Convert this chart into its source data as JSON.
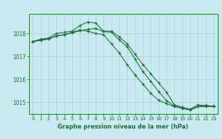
{
  "xlabel": "Graphe pression niveau de la mer (hPa)",
  "background_color": "#c8eaf0",
  "grid_color": "#aad4d0",
  "line_color": "#1a6e2e",
  "ylim": [
    1014.5,
    1018.85
  ],
  "xlim": [
    -0.5,
    23.5
  ],
  "yticks": [
    1015,
    1016,
    1017,
    1018
  ],
  "xticks": [
    0,
    1,
    2,
    3,
    4,
    5,
    6,
    7,
    8,
    9,
    10,
    11,
    12,
    13,
    14,
    15,
    16,
    17,
    18,
    19,
    20,
    21,
    22,
    23
  ],
  "line1": [
    1017.65,
    1017.75,
    1017.8,
    1018.0,
    1018.05,
    1018.1,
    1018.35,
    1018.5,
    1018.45,
    1018.1,
    1018.1,
    1017.85,
    1017.55,
    1017.1,
    1016.65,
    1016.25,
    1015.85,
    1015.45,
    1014.9,
    1014.8,
    1014.7,
    1014.9,
    1014.85,
    1014.85
  ],
  "line2": [
    1017.65,
    1017.7,
    1017.75,
    1017.9,
    1017.95,
    1018.05,
    1018.15,
    1018.1,
    1018.0,
    1017.95,
    1017.55,
    1017.15,
    1016.65,
    1016.2,
    1015.8,
    1015.4,
    1015.1,
    1014.95,
    1014.82,
    1014.75,
    1014.68,
    1014.82,
    1014.88,
    1014.82
  ],
  "line3": [
    1017.65,
    1017.72,
    1017.78,
    1017.88,
    1017.95,
    1018.02,
    1018.12,
    1018.18,
    1018.22,
    1018.08,
    1018.05,
    1017.72,
    1017.42,
    1016.88,
    1016.35,
    1015.92,
    1015.48,
    1015.08,
    1014.85,
    1014.75,
    1014.68,
    1014.82,
    1014.82,
    1014.82
  ]
}
